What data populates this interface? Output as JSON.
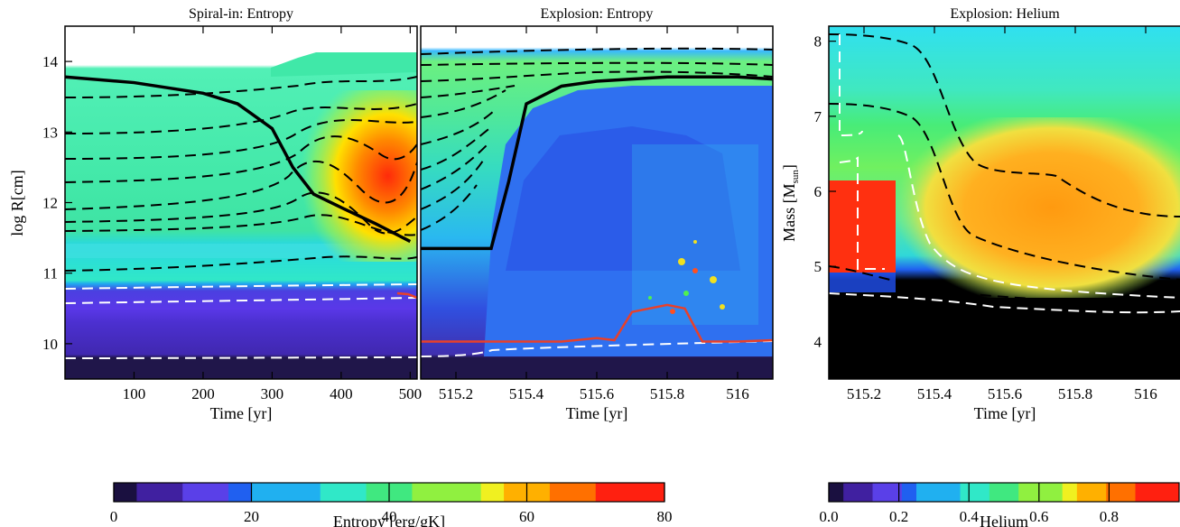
{
  "chart_data": [
    {
      "type": "heatmap",
      "title": "Spiral-in: Entropy",
      "xlabel": "Time [yr]",
      "ylabel": "log R[cm]",
      "xlim": [
        0,
        510
      ],
      "ylim": [
        9.5,
        14.5
      ],
      "x_ticks": [
        100,
        200,
        300,
        400,
        500
      ],
      "y_ticks": [
        10,
        11,
        12,
        13,
        14
      ],
      "colorbar": "Entropy [erg/gK]",
      "series": [
        {
          "name": "",
          "x": [
            0,
            100,
            200,
            250,
            300,
            330,
            360,
            400,
            450,
            500
          ],
          "y": [
            13.78,
            13.7,
            13.55,
            13.4,
            13.05,
            12.5,
            12.12,
            11.93,
            11.7,
            11.45
          ]
        }
      ]
    },
    {
      "type": "heatmap",
      "title": "Explosion: Entropy",
      "xlabel": "Time [yr]",
      "ylabel": "",
      "xlim": [
        515.1,
        516.1
      ],
      "ylim": [
        9.5,
        14.5
      ],
      "x_ticks": [
        515.2,
        515.4,
        515.6,
        515.8,
        516.0
      ],
      "colorbar": "Entropy [erg/gK]",
      "series": [
        {
          "name": "",
          "x": [
            515.1,
            515.2,
            515.3,
            515.35,
            515.4,
            515.5,
            515.6,
            515.8,
            516.0,
            516.1
          ],
          "y": [
            11.35,
            11.35,
            11.35,
            12.3,
            13.4,
            13.65,
            13.72,
            13.78,
            13.78,
            13.75
          ]
        },
        {
          "name": "",
          "x": [
            515.1,
            515.5,
            515.6,
            515.65,
            515.7,
            515.8,
            515.85,
            515.9,
            516.0,
            516.1
          ],
          "y": [
            10.03,
            10.03,
            10.08,
            10.05,
            10.45,
            10.55,
            10.5,
            10.03,
            10.03,
            10.05
          ]
        }
      ]
    },
    {
      "type": "heatmap",
      "title": "Explosion: Helium",
      "xlabel": "Time [yr]",
      "ylabel": "Mass [M",
      "ylabel_sub": "sun",
      "ylabel_end": "]",
      "xlim": [
        515.1,
        516.1
      ],
      "ylim": [
        3.5,
        8.2
      ],
      "x_ticks": [
        515.2,
        515.4,
        515.6,
        515.8,
        516.0
      ],
      "y_ticks": [
        4,
        5,
        6,
        7,
        8
      ],
      "colorbar": "Helium"
    }
  ],
  "colorbars": [
    {
      "label": "Entropy [erg/gK]",
      "ticks": [
        "0",
        "20",
        "40",
        "60",
        "80"
      ],
      "range": [
        0,
        80
      ]
    },
    {
      "label": "Helium",
      "ticks": [
        "0.0",
        "0.2",
        "0.4",
        "0.6",
        "0.8"
      ],
      "range": [
        0,
        1
      ]
    }
  ],
  "colors": {
    "hot": "#ff3010",
    "warm": "#ffa000",
    "cool": "#30e8a0",
    "cold": "#2050f0",
    "core": "#000000",
    "overlay_red": "#e8402a"
  }
}
